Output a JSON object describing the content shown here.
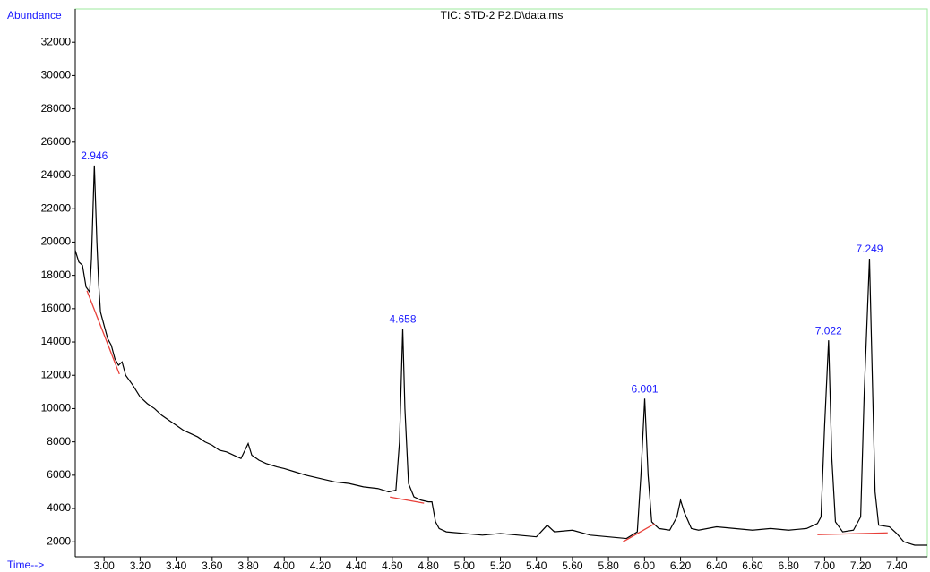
{
  "chart_data": {
    "type": "line",
    "title": "TIC: STD-2 P2.D\\data.ms",
    "y_label": "Abundance",
    "x_label": "Time-->",
    "x": [
      2.84,
      2.86,
      2.88,
      2.9,
      2.92,
      2.93,
      2.946,
      2.96,
      2.97,
      2.98,
      3.0,
      3.02,
      3.04,
      3.06,
      3.08,
      3.1,
      3.12,
      3.16,
      3.2,
      3.24,
      3.28,
      3.32,
      3.36,
      3.4,
      3.44,
      3.48,
      3.52,
      3.56,
      3.6,
      3.64,
      3.68,
      3.72,
      3.76,
      3.8,
      3.82,
      3.86,
      3.9,
      3.96,
      4.0,
      4.06,
      4.12,
      4.2,
      4.28,
      4.36,
      4.44,
      4.52,
      4.58,
      4.62,
      4.64,
      4.658,
      4.67,
      4.69,
      4.72,
      4.76,
      4.8,
      4.82,
      4.84,
      4.86,
      4.9,
      5.0,
      5.1,
      5.2,
      5.3,
      5.4,
      5.46,
      5.5,
      5.6,
      5.7,
      5.8,
      5.9,
      5.96,
      5.98,
      6.001,
      6.02,
      6.04,
      6.08,
      6.14,
      6.18,
      6.2,
      6.22,
      6.26,
      6.3,
      6.4,
      6.5,
      6.6,
      6.7,
      6.8,
      6.9,
      6.96,
      6.98,
      7.0,
      7.022,
      7.04,
      7.06,
      7.1,
      7.16,
      7.2,
      7.22,
      7.249,
      7.26,
      7.28,
      7.3,
      7.36,
      7.4,
      7.44,
      7.5,
      7.57
    ],
    "series": [
      {
        "color": "#000000",
        "values": [
          19500,
          18800,
          18600,
          17300,
          17000,
          19000,
          24600,
          20000,
          17500,
          15800,
          15000,
          14200,
          13800,
          13000,
          12600,
          12800,
          12000,
          11400,
          10700,
          10300,
          10000,
          9600,
          9300,
          9000,
          8700,
          8500,
          8300,
          8000,
          7800,
          7500,
          7400,
          7200,
          7000,
          7900,
          7200,
          6900,
          6700,
          6500,
          6400,
          6200,
          6000,
          5800,
          5600,
          5500,
          5300,
          5200,
          5000,
          5100,
          8000,
          14800,
          10000,
          5500,
          4700,
          4500,
          4400,
          4400,
          3200,
          2800,
          2600,
          2500,
          2400,
          2500,
          2400,
          2300,
          3000,
          2600,
          2700,
          2400,
          2300,
          2200,
          2600,
          6000,
          10600,
          6000,
          3200,
          2800,
          2700,
          3500,
          4500,
          3800,
          2800,
          2700,
          2900,
          2800,
          2700,
          2800,
          2700,
          2800,
          3100,
          3500,
          9000,
          14100,
          7000,
          3200,
          2600,
          2700,
          3500,
          11000,
          19000,
          14000,
          5000,
          3000,
          2900,
          2500,
          2000,
          1800,
          1800
        ]
      }
    ],
    "peak_labels": [
      2.946,
      4.658,
      6.001,
      7.022,
      7.249
    ],
    "peak_label_color": "#1a1aff",
    "baselines": {
      "color": "#e8403a",
      "segments": [
        {
          "x": [
            2.905,
            3.085
          ],
          "y": [
            17080,
            12070
          ]
        },
        {
          "x": [
            4.587,
            4.776
          ],
          "y": [
            4690,
            4320
          ]
        },
        {
          "x": [
            5.88,
            6.055
          ],
          "y": [
            2000,
            3080
          ]
        },
        {
          "x": [
            6.96,
            7.35
          ],
          "y": [
            2430,
            2540
          ]
        }
      ]
    },
    "xlim": [
      2.84,
      7.57
    ],
    "ylim": [
      1100,
      34000
    ],
    "yticks": [
      2000,
      4000,
      6000,
      8000,
      10000,
      12000,
      14000,
      16000,
      18000,
      20000,
      22000,
      24000,
      26000,
      28000,
      30000,
      32000
    ],
    "xticks": [
      {
        "value": 3.0,
        "label": "3.00"
      },
      {
        "value": 3.2,
        "label": "3.20"
      },
      {
        "value": 3.4,
        "label": "3.40"
      },
      {
        "value": 3.6,
        "label": "3.60"
      },
      {
        "value": 3.8,
        "label": "3.80"
      },
      {
        "value": 4.0,
        "label": "4.00"
      },
      {
        "value": 4.2,
        "label": "4.20"
      },
      {
        "value": 4.4,
        "label": "4.40"
      },
      {
        "value": 4.6,
        "label": "4.60"
      },
      {
        "value": 4.8,
        "label": "4.80"
      },
      {
        "value": 5.0,
        "label": "5.00"
      },
      {
        "value": 5.2,
        "label": "5.20"
      },
      {
        "value": 5.4,
        "label": "5.40"
      },
      {
        "value": 5.6,
        "label": "5.60"
      },
      {
        "value": 5.8,
        "label": "5.80"
      },
      {
        "value": 6.0,
        "label": "6.00"
      },
      {
        "value": 6.2,
        "label": "6.20"
      },
      {
        "value": 6.4,
        "label": "6.40"
      },
      {
        "value": 6.6,
        "label": "6.60"
      },
      {
        "value": 6.8,
        "label": "6.80"
      },
      {
        "value": 7.0,
        "label": "7.00"
      },
      {
        "value": 7.2,
        "label": "7.20"
      },
      {
        "value": 7.4,
        "label": "7.40"
      }
    ]
  }
}
